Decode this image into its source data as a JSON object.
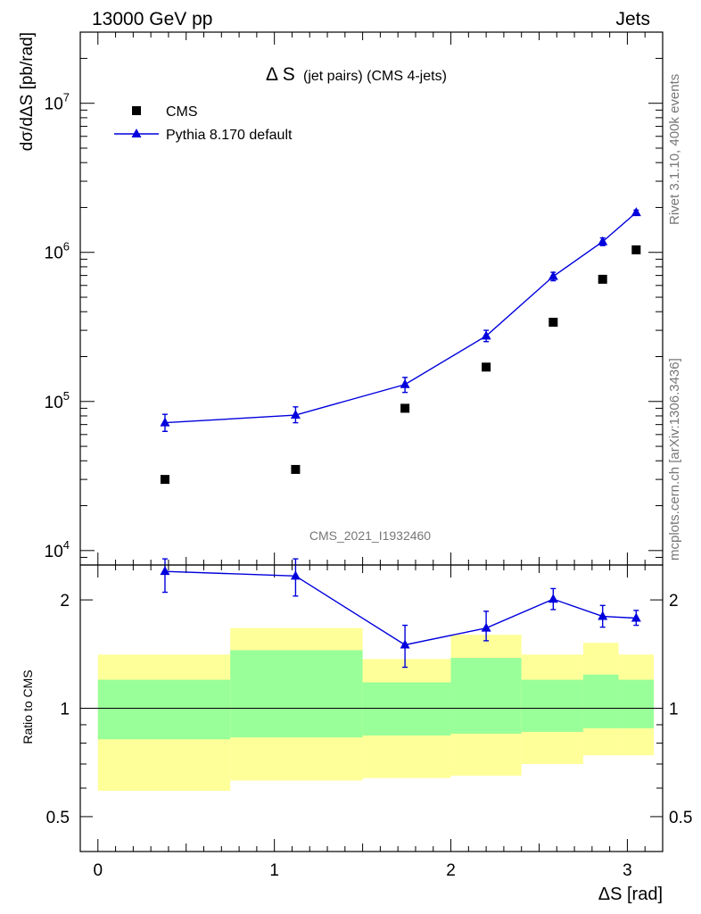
{
  "header": {
    "left": "13000 GeV pp",
    "right": "Jets"
  },
  "side": {
    "rivet": "Rivet 3.1.10,  400k events",
    "mcplots": "mcplots.cern.ch [arXiv:1306.3436]"
  },
  "plot": {
    "title_main": "Δ S",
    "title_sub": "(jet pairs) (CMS 4-jets)",
    "watermark": "CMS_2021_I1932460",
    "ylabel": "dσ/dΔS [pb/rad]",
    "xlabel": "ΔS [rad]",
    "ratio_ylabel": "Ratio to CMS"
  },
  "legend": {
    "cms": "CMS",
    "pythia": "Pythia 8.170 default"
  },
  "colors": {
    "pythia": "#0000dd",
    "band_outer": "#ffff99",
    "band_inner": "#99ff99",
    "data": "#000000"
  },
  "chart_data": {
    "type": "scatter",
    "x_range": [
      -0.1,
      3.2
    ],
    "y_range": [
      8000,
      30000000
    ],
    "y_scale": "log",
    "ratio_range": [
      0.4,
      2.5
    ],
    "ratio_scale": "log",
    "x_ticks": [
      0,
      1,
      2,
      3
    ],
    "y_ticks": [
      {
        "value": 10000,
        "base": "10",
        "exp": "4"
      },
      {
        "value": 100000,
        "base": "10",
        "exp": "5"
      },
      {
        "value": 1000000,
        "base": "10",
        "exp": "6"
      },
      {
        "value": 10000000,
        "base": "10",
        "exp": "7"
      }
    ],
    "ratio_ticks": [
      {
        "value": 0.5,
        "label": "0.5"
      },
      {
        "value": 1,
        "label": "1"
      },
      {
        "value": 2,
        "label": "2"
      }
    ],
    "bins": [
      {
        "lo": 0.0,
        "hi": 0.75,
        "cms_x": 0.38,
        "cms": 30000,
        "pythia_x": 0.38,
        "pythia": 72000,
        "pythia_err": [
          63000,
          82000
        ],
        "ratio": 2.4,
        "ratio_err": [
          2.1,
          2.6
        ],
        "band_outer": [
          0.59,
          1.41
        ],
        "band_inner": [
          0.82,
          1.2
        ]
      },
      {
        "lo": 0.75,
        "hi": 1.5,
        "cms_x": 1.12,
        "cms": 35000,
        "pythia_x": 1.12,
        "pythia": 81000,
        "pythia_err": [
          72000,
          92000
        ],
        "ratio": 2.33,
        "ratio_err": [
          2.05,
          2.6
        ],
        "band_outer": [
          0.63,
          1.67
        ],
        "band_inner": [
          0.83,
          1.45
        ]
      },
      {
        "lo": 1.5,
        "hi": 2.0,
        "cms_x": 1.74,
        "cms": 90000,
        "pythia_x": 1.74,
        "pythia": 130000,
        "pythia_err": [
          115000,
          145000
        ],
        "ratio": 1.5,
        "ratio_err": [
          1.3,
          1.7
        ],
        "band_outer": [
          0.64,
          1.37
        ],
        "band_inner": [
          0.84,
          1.18
        ]
      },
      {
        "lo": 2.0,
        "hi": 2.4,
        "cms_x": 2.2,
        "cms": 170000,
        "pythia_x": 2.2,
        "pythia": 275000,
        "pythia_err": [
          252000,
          300000
        ],
        "ratio": 1.67,
        "ratio_err": [
          1.54,
          1.86
        ],
        "band_outer": [
          0.65,
          1.6
        ],
        "band_inner": [
          0.85,
          1.38
        ]
      },
      {
        "lo": 2.4,
        "hi": 2.75,
        "cms_x": 2.58,
        "cms": 340000,
        "pythia_x": 2.58,
        "pythia": 690000,
        "pythia_err": [
          645000,
          735000
        ],
        "ratio": 2.01,
        "ratio_err": [
          1.88,
          2.15
        ],
        "band_outer": [
          0.7,
          1.41
        ],
        "band_inner": [
          0.86,
          1.2
        ]
      },
      {
        "lo": 2.75,
        "hi": 2.95,
        "cms_x": 2.86,
        "cms": 660000,
        "pythia_x": 2.86,
        "pythia": 1180000,
        "pythia_err": [
          1110000,
          1250000
        ],
        "ratio": 1.8,
        "ratio_err": [
          1.68,
          1.93
        ],
        "band_outer": [
          0.74,
          1.52
        ],
        "band_inner": [
          0.88,
          1.24
        ]
      },
      {
        "lo": 2.95,
        "hi": 3.15,
        "cms_x": 3.05,
        "cms": 1040000,
        "pythia_x": 3.05,
        "pythia": 1850000,
        "pythia_err": [
          1780000,
          1920000
        ],
        "ratio": 1.78,
        "ratio_err": [
          1.7,
          1.87
        ],
        "band_outer": [
          0.74,
          1.41
        ],
        "band_inner": [
          0.88,
          1.2
        ]
      }
    ]
  }
}
